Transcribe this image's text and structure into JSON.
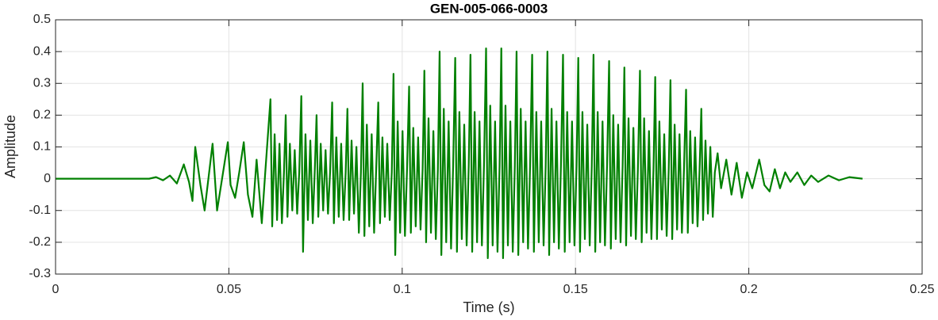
{
  "chart_data": {
    "type": "line",
    "title": "GEN-005-066-0003",
    "xlabel": "Time (s)",
    "ylabel": "Amplitude",
    "color": "#008000",
    "grid": true,
    "xlim": [
      0,
      0.25
    ],
    "xticks": [
      0,
      0.05,
      0.1,
      0.15,
      0.2,
      0.25
    ],
    "ylim": [
      -0.3,
      0.5
    ],
    "yticks": [
      -0.3,
      -0.2,
      -0.1,
      0,
      0.1,
      0.2,
      0.3,
      0.4,
      0.5
    ],
    "x": [
      0,
      0.01,
      0.02,
      0.027,
      0.029,
      0.031,
      0.033,
      0.035,
      0.037,
      0.0385,
      0.0395,
      0.0403,
      0.0418,
      0.043,
      0.0453,
      0.0466,
      0.0497,
      0.0505,
      0.0518,
      0.053,
      0.0543,
      0.0555,
      0.0568,
      0.058,
      0.0595,
      0.0605,
      0.062,
      0.0625,
      0.0632,
      0.0639,
      0.0646,
      0.0653,
      0.0659,
      0.0664,
      0.0669,
      0.0676,
      0.0683,
      0.069,
      0.0697,
      0.0703,
      0.0709,
      0.0714,
      0.0721,
      0.0728,
      0.0735,
      0.0742,
      0.0748,
      0.0753,
      0.0758,
      0.0765,
      0.0772,
      0.0779,
      0.0786,
      0.0792,
      0.0798,
      0.0803,
      0.081,
      0.0817,
      0.0824,
      0.0831,
      0.0837,
      0.0842,
      0.0847,
      0.0854,
      0.0861,
      0.0868,
      0.0875,
      0.0881,
      0.0886,
      0.0891,
      0.0898,
      0.0905,
      0.0912,
      0.0919,
      0.0925,
      0.0931,
      0.0936,
      0.0943,
      0.095,
      0.0957,
      0.0964,
      0.097,
      0.0975,
      0.098,
      0.0987,
      0.0994,
      0.1001,
      0.1008,
      0.1014,
      0.102,
      0.1025,
      0.1032,
      0.1039,
      0.1046,
      0.1053,
      0.1059,
      0.1064,
      0.1069,
      0.1076,
      0.1083,
      0.109,
      0.1097,
      0.1103,
      0.1108,
      0.1113,
      0.112,
      0.1127,
      0.1134,
      0.1141,
      0.1147,
      0.1153,
      0.1158,
      0.1165,
      0.1172,
      0.1179,
      0.1186,
      0.1192,
      0.1197,
      0.1202,
      0.1209,
      0.1216,
      0.1223,
      0.123,
      0.1236,
      0.1242,
      0.1247,
      0.1254,
      0.1261,
      0.1268,
      0.1275,
      0.1281,
      0.1286,
      0.1291,
      0.1298,
      0.1305,
      0.1312,
      0.1319,
      0.1325,
      0.133,
      0.1335,
      0.1342,
      0.1349,
      0.1356,
      0.1363,
      0.1369,
      0.1375,
      0.138,
      0.1387,
      0.1394,
      0.1401,
      0.1408,
      0.1414,
      0.1419,
      0.1424,
      0.1431,
      0.1438,
      0.1445,
      0.1452,
      0.1458,
      0.1464,
      0.1469,
      0.1476,
      0.1483,
      0.149,
      0.1497,
      0.1503,
      0.1508,
      0.1513,
      0.152,
      0.1527,
      0.1534,
      0.1541,
      0.1547,
      0.1552,
      0.1557,
      0.1564,
      0.1571,
      0.1578,
      0.1585,
      0.1591,
      0.1597,
      0.1602,
      0.1609,
      0.1616,
      0.1623,
      0.163,
      0.1636,
      0.1641,
      0.1646,
      0.1653,
      0.166,
      0.1667,
      0.1674,
      0.168,
      0.1686,
      0.1691,
      0.1698,
      0.1705,
      0.1712,
      0.1719,
      0.1725,
      0.173,
      0.1735,
      0.1742,
      0.1749,
      0.1756,
      0.1763,
      0.1769,
      0.1774,
      0.1779,
      0.1786,
      0.1793,
      0.18,
      0.1807,
      0.1813,
      0.1819,
      0.1824,
      0.1831,
      0.1838,
      0.1845,
      0.1852,
      0.1858,
      0.1863,
      0.1868,
      0.1875,
      0.1882,
      0.1889,
      0.1896,
      0.1902,
      0.191,
      0.192,
      0.1935,
      0.195,
      0.1965,
      0.198,
      0.1995,
      0.201,
      0.203,
      0.2045,
      0.206,
      0.2075,
      0.209,
      0.2105,
      0.212,
      0.214,
      0.216,
      0.218,
      0.22,
      0.223,
      0.226,
      0.229,
      0.2328
    ],
    "values": [
      0,
      0,
      0,
      0,
      0.005,
      -0.005,
      0.01,
      -0.015,
      0.045,
      -0.01,
      -0.07,
      0.1,
      -0.02,
      -0.1,
      0.11,
      -0.1,
      0.115,
      -0.02,
      -0.06,
      0.02,
      0.115,
      -0.05,
      -0.12,
      0.06,
      -0.14,
      0.02,
      0.25,
      -0.15,
      0.14,
      -0.13,
      0.11,
      -0.14,
      0.02,
      0.2,
      -0.12,
      0.11,
      -0.1,
      0.09,
      -0.11,
      0.02,
      0.26,
      -0.23,
      0.14,
      -0.13,
      0.12,
      -0.14,
      0.03,
      0.2,
      -0.12,
      0.11,
      -0.1,
      0.09,
      -0.11,
      0.02,
      0.24,
      -0.14,
      0.13,
      -0.12,
      0.11,
      -0.13,
      0.02,
      0.22,
      -0.13,
      0.12,
      -0.11,
      0.1,
      -0.17,
      0.02,
      0.3,
      -0.18,
      0.17,
      -0.15,
      0.14,
      -0.17,
      0.03,
      0.24,
      -0.14,
      0.13,
      -0.12,
      0.11,
      -0.13,
      0.02,
      0.33,
      -0.24,
      0.18,
      -0.17,
      0.15,
      -0.18,
      0.03,
      0.29,
      -0.17,
      0.16,
      -0.15,
      0.13,
      -0.16,
      0.03,
      0.34,
      -0.2,
      0.19,
      -0.17,
      0.15,
      -0.19,
      0.03,
      0.4,
      -0.24,
      0.22,
      -0.2,
      0.18,
      -0.22,
      0.04,
      0.38,
      -0.23,
      0.21,
      -0.19,
      0.17,
      -0.21,
      0.04,
      0.39,
      -0.23,
      0.21,
      -0.2,
      0.18,
      -0.21,
      0.04,
      0.41,
      -0.25,
      0.23,
      -0.21,
      0.18,
      -0.23,
      0.04,
      0.41,
      -0.25,
      0.23,
      -0.21,
      0.18,
      -0.23,
      0.04,
      0.4,
      -0.24,
      0.22,
      -0.2,
      0.18,
      -0.22,
      0.04,
      0.39,
      -0.23,
      0.21,
      -0.2,
      0.18,
      -0.21,
      0.04,
      0.4,
      -0.24,
      0.22,
      -0.2,
      0.18,
      -0.22,
      0.04,
      0.39,
      -0.23,
      0.21,
      -0.2,
      0.18,
      -0.21,
      0.04,
      0.38,
      -0.23,
      0.21,
      -0.19,
      0.17,
      -0.21,
      0.04,
      0.39,
      -0.23,
      0.21,
      -0.2,
      0.18,
      -0.21,
      0.04,
      0.37,
      -0.22,
      0.2,
      -0.19,
      0.17,
      -0.2,
      0.04,
      0.35,
      -0.21,
      0.19,
      -0.18,
      0.16,
      -0.19,
      0.03,
      0.34,
      -0.2,
      0.19,
      -0.17,
      0.15,
      -0.19,
      0.03,
      0.32,
      -0.19,
      0.18,
      -0.16,
      0.14,
      -0.18,
      0.03,
      0.31,
      -0.19,
      0.17,
      -0.16,
      0.14,
      -0.17,
      0.03,
      0.28,
      -0.17,
      0.15,
      -0.14,
      0.13,
      -0.15,
      0.03,
      0.22,
      -0.13,
      0.12,
      -0.11,
      0.1,
      -0.12,
      0.02,
      0.08,
      -0.03,
      0.06,
      -0.05,
      0.05,
      -0.06,
      0.02,
      -0.03,
      0.06,
      -0.02,
      -0.04,
      0.03,
      -0.03,
      0.02,
      -0.01,
      0.02,
      -0.02,
      0.01,
      -0.01,
      0.01,
      -0.005,
      0.005,
      0
    ]
  }
}
